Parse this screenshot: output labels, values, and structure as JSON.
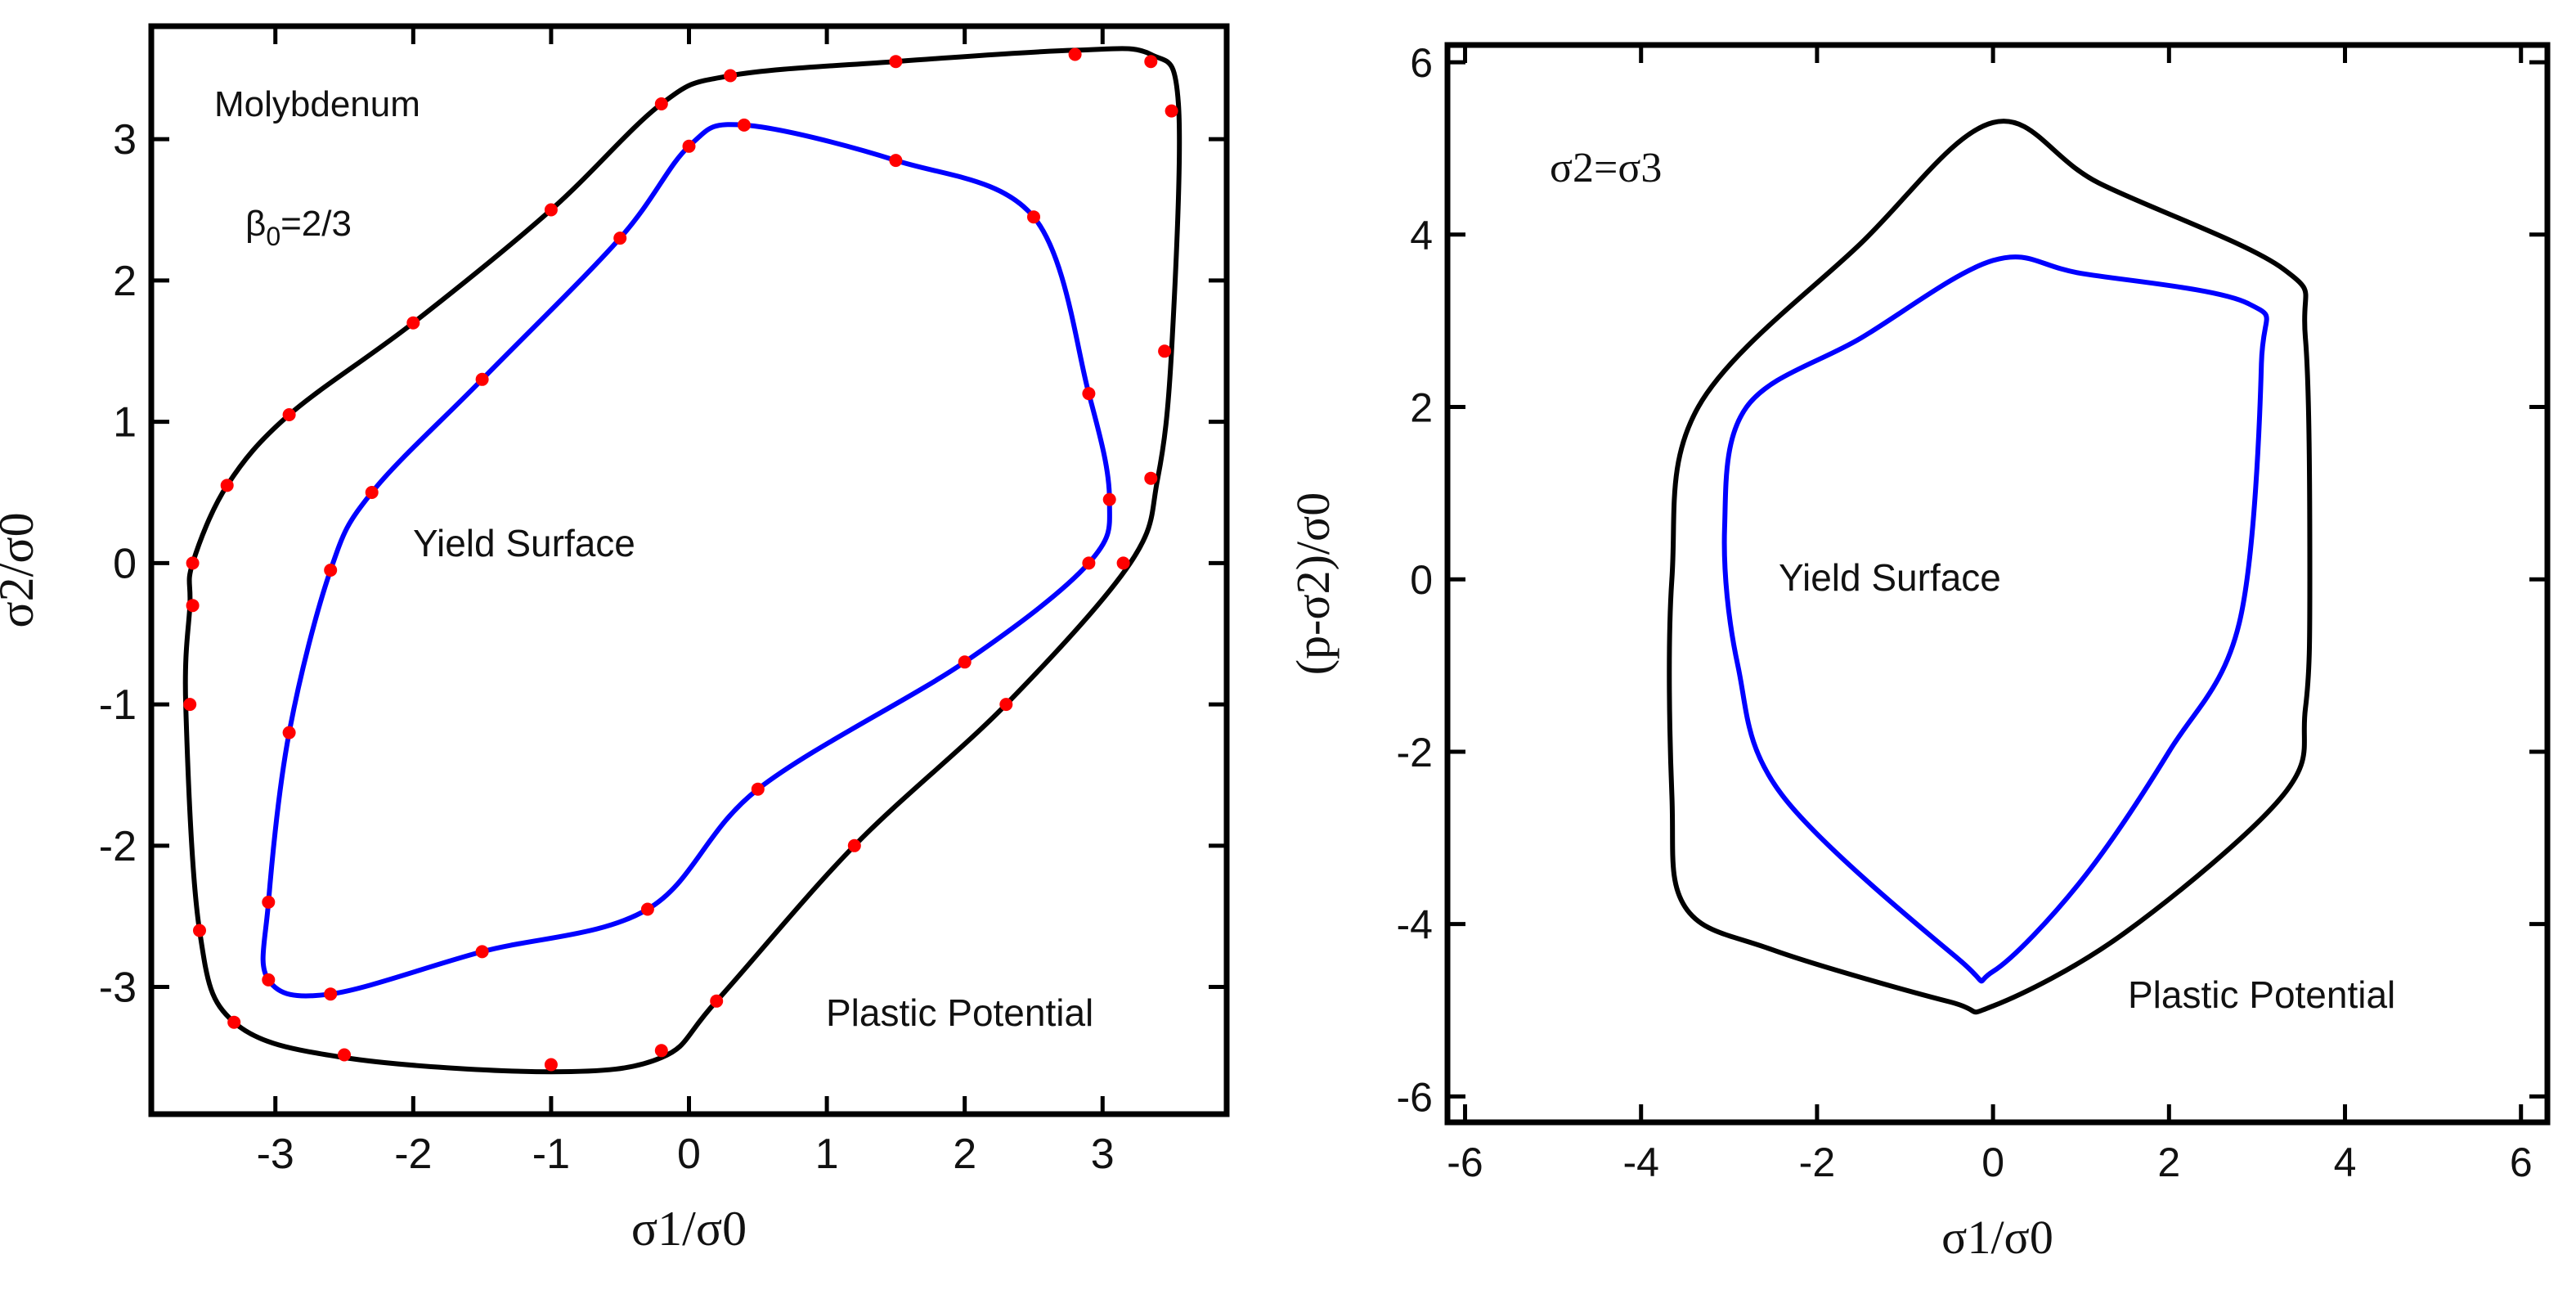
{
  "charts": [
    {
      "type": "line",
      "xlabel": "σ1/σ0",
      "ylabel": "σ2/σ0",
      "xlim": [
        -3.9,
        3.9
      ],
      "ylim": [
        -3.9,
        3.8
      ],
      "xticks": [
        -3,
        -2,
        -1,
        0,
        1,
        2,
        3
      ],
      "yticks": [
        -3,
        -2,
        -1,
        0,
        1,
        2,
        3
      ],
      "annotations": {
        "material": "Molybdenum",
        "beta_base": "β",
        "beta_sub": "0",
        "beta_rest": "=2/3",
        "inner_label": "Yield Surface",
        "outer_label": "Plastic Potential"
      },
      "series": [
        {
          "name": "Plastic Potential",
          "style": "line",
          "color": "#000000",
          "points": [
            [
              -3.6,
              0.0
            ],
            [
              -3.35,
              0.55
            ],
            [
              -2.9,
              1.05
            ],
            [
              -2.0,
              1.7
            ],
            [
              -1.0,
              2.5
            ],
            [
              -0.2,
              3.25
            ],
            [
              0.3,
              3.45
            ],
            [
              1.5,
              3.55
            ],
            [
              2.8,
              3.63
            ],
            [
              3.35,
              3.6
            ],
            [
              3.55,
              3.25
            ],
            [
              3.5,
              1.5
            ],
            [
              3.4,
              0.6
            ],
            [
              3.2,
              0.0
            ],
            [
              2.3,
              -1.0
            ],
            [
              1.2,
              -2.0
            ],
            [
              0.2,
              -3.1
            ],
            [
              -0.2,
              -3.5
            ],
            [
              -1.0,
              -3.6
            ],
            [
              -2.5,
              -3.5
            ],
            [
              -3.3,
              -3.25
            ],
            [
              -3.55,
              -2.6
            ],
            [
              -3.65,
              -1.0
            ],
            [
              -3.62,
              -0.3
            ]
          ]
        },
        {
          "name": "Plastic Potential (dots)",
          "style": "dots",
          "color": "#ff0000",
          "points": [
            [
              -3.6,
              0.0
            ],
            [
              -3.35,
              0.55
            ],
            [
              -2.9,
              1.05
            ],
            [
              -2.0,
              1.7
            ],
            [
              -1.0,
              2.5
            ],
            [
              -0.2,
              3.25
            ],
            [
              0.3,
              3.45
            ],
            [
              1.5,
              3.55
            ],
            [
              2.8,
              3.6
            ],
            [
              3.35,
              3.55
            ],
            [
              3.5,
              3.2
            ],
            [
              3.45,
              1.5
            ],
            [
              3.35,
              0.6
            ],
            [
              3.15,
              0.0
            ],
            [
              2.3,
              -1.0
            ],
            [
              1.2,
              -2.0
            ],
            [
              0.2,
              -3.1
            ],
            [
              -0.2,
              -3.45
            ],
            [
              -1.0,
              -3.55
            ],
            [
              -2.5,
              -3.48
            ],
            [
              -3.3,
              -3.25
            ],
            [
              -3.55,
              -2.6
            ],
            [
              -3.62,
              -1.0
            ],
            [
              -3.6,
              -0.3
            ]
          ]
        },
        {
          "name": "Yield Surface",
          "style": "line",
          "color": "#0000ff",
          "points": [
            [
              -2.6,
              -0.05
            ],
            [
              -2.3,
              0.5
            ],
            [
              -1.5,
              1.3
            ],
            [
              -0.5,
              2.3
            ],
            [
              0.0,
              2.95
            ],
            [
              0.4,
              3.1
            ],
            [
              1.5,
              2.85
            ],
            [
              2.5,
              2.45
            ],
            [
              2.9,
              1.2
            ],
            [
              3.05,
              0.45
            ],
            [
              2.9,
              0.0
            ],
            [
              2.0,
              -0.7
            ],
            [
              0.5,
              -1.6
            ],
            [
              -0.3,
              -2.45
            ],
            [
              -1.5,
              -2.75
            ],
            [
              -2.6,
              -3.05
            ],
            [
              -3.05,
              -2.95
            ],
            [
              -3.05,
              -2.4
            ],
            [
              -2.9,
              -1.2
            ]
          ]
        },
        {
          "name": "Yield Surface (dots)",
          "style": "dots",
          "color": "#ff0000",
          "points": [
            [
              -2.6,
              -0.05
            ],
            [
              -2.3,
              0.5
            ],
            [
              -1.5,
              1.3
            ],
            [
              -0.5,
              2.3
            ],
            [
              0.0,
              2.95
            ],
            [
              0.4,
              3.1
            ],
            [
              1.5,
              2.85
            ],
            [
              2.5,
              2.45
            ],
            [
              2.9,
              1.2
            ],
            [
              3.05,
              0.45
            ],
            [
              2.9,
              0.0
            ],
            [
              2.0,
              -0.7
            ],
            [
              0.5,
              -1.6
            ],
            [
              -0.3,
              -2.45
            ],
            [
              -1.5,
              -2.75
            ],
            [
              -2.6,
              -3.05
            ],
            [
              -3.05,
              -2.95
            ],
            [
              -3.05,
              -2.4
            ],
            [
              -2.9,
              -1.2
            ]
          ]
        }
      ]
    },
    {
      "type": "line",
      "xlabel": "σ1/σ0",
      "ylabel": "(p-σ2)/σ0",
      "xlim": [
        -6.2,
        6.3
      ],
      "ylim": [
        -6.3,
        6.2
      ],
      "xticks": [
        -6,
        -4,
        -2,
        0,
        2,
        4,
        6
      ],
      "yticks": [
        -6,
        -4,
        -2,
        0,
        2,
        4,
        6
      ],
      "annotations": {
        "condition": "σ2=σ3",
        "inner_label": "Yield Surface",
        "outer_label": "Plastic Potential"
      },
      "series": [
        {
          "name": "Plastic Potential",
          "style": "line",
          "color": "#000000",
          "points": [
            [
              0.0,
              5.3
            ],
            [
              1.2,
              4.6
            ],
            [
              3.3,
              3.6
            ],
            [
              3.55,
              2.8
            ],
            [
              3.6,
              0.0
            ],
            [
              3.55,
              -1.5
            ],
            [
              3.3,
              -2.5
            ],
            [
              1.5,
              -4.1
            ],
            [
              0.0,
              -4.95
            ],
            [
              -0.5,
              -4.9
            ],
            [
              -2.5,
              -4.3
            ],
            [
              -3.5,
              -3.8
            ],
            [
              -3.65,
              -2.5
            ],
            [
              -3.65,
              0.0
            ],
            [
              -3.35,
              2.0
            ],
            [
              -1.5,
              3.9
            ]
          ]
        },
        {
          "name": "Yield Surface",
          "style": "line",
          "color": "#0000ff",
          "points": [
            [
              0.0,
              3.7
            ],
            [
              1.0,
              3.55
            ],
            [
              2.9,
              3.2
            ],
            [
              3.05,
              2.5
            ],
            [
              2.8,
              -0.5
            ],
            [
              2.0,
              -2.0
            ],
            [
              1.0,
              -3.5
            ],
            [
              0.0,
              -4.55
            ],
            [
              -0.4,
              -4.4
            ],
            [
              -2.4,
              -2.5
            ],
            [
              -2.9,
              -1.0
            ],
            [
              -3.05,
              0.6
            ],
            [
              -2.8,
              2.0
            ],
            [
              -1.5,
              2.8
            ]
          ]
        }
      ]
    }
  ]
}
